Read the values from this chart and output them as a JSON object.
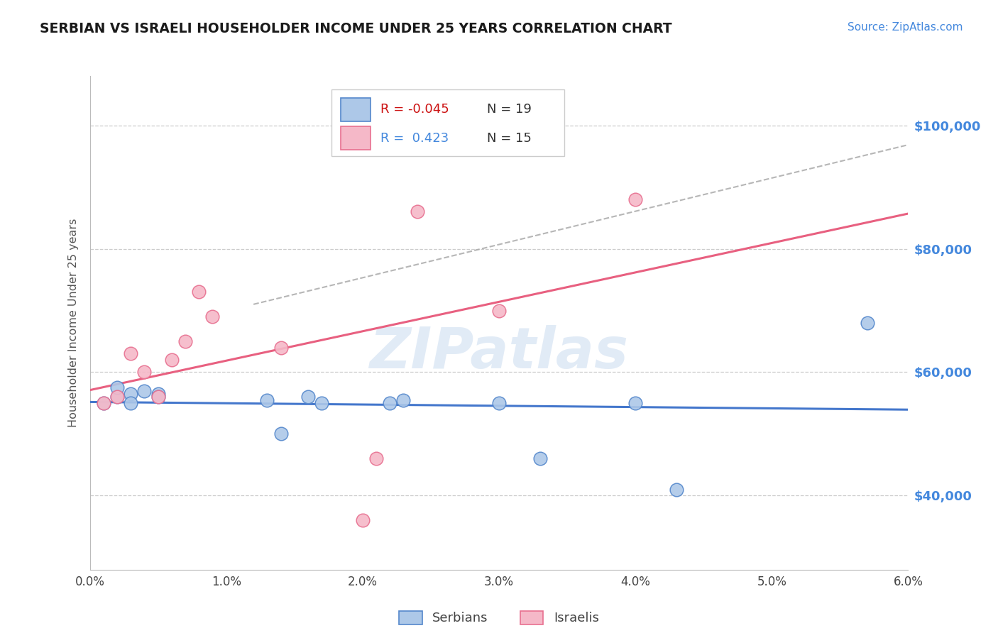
{
  "title": "SERBIAN VS ISRAELI HOUSEHOLDER INCOME UNDER 25 YEARS CORRELATION CHART",
  "source": "Source: ZipAtlas.com",
  "ylabel": "Householder Income Under 25 years",
  "xlim": [
    0.0,
    0.06
  ],
  "ylim": [
    28000,
    108000
  ],
  "xtick_values": [
    0.0,
    0.01,
    0.02,
    0.03,
    0.04,
    0.05,
    0.06
  ],
  "xtick_labels": [
    "0.0%",
    "1.0%",
    "2.0%",
    "3.0%",
    "4.0%",
    "5.0%",
    "6.0%"
  ],
  "ytick_values": [
    40000,
    60000,
    80000,
    100000
  ],
  "ytick_labels": [
    "$40,000",
    "$60,000",
    "$80,000",
    "$100,000"
  ],
  "background_color": "#ffffff",
  "grid_color": "#cccccc",
  "watermark_text": "ZIPatlas",
  "legend_R_serbian": "-0.045",
  "legend_N_serbian": "19",
  "legend_R_israeli": "0.423",
  "legend_N_israeli": "15",
  "serbian_face": "#adc8e8",
  "serbian_edge": "#5588cc",
  "israeli_face": "#f5b8c8",
  "israeli_edge": "#e87090",
  "trend_serbian": "#4477cc",
  "trend_israeli": "#e86080",
  "trend_gray": "#aaaaaa",
  "serbian_points": [
    [
      0.001,
      55000
    ],
    [
      0.002,
      56000
    ],
    [
      0.002,
      57500
    ],
    [
      0.003,
      56500
    ],
    [
      0.003,
      55000
    ],
    [
      0.004,
      57000
    ],
    [
      0.005,
      56500
    ],
    [
      0.005,
      56000
    ],
    [
      0.013,
      55500
    ],
    [
      0.014,
      50000
    ],
    [
      0.016,
      56000
    ],
    [
      0.017,
      55000
    ],
    [
      0.022,
      55000
    ],
    [
      0.023,
      55500
    ],
    [
      0.03,
      55000
    ],
    [
      0.033,
      46000
    ],
    [
      0.04,
      55000
    ],
    [
      0.043,
      41000
    ],
    [
      0.057,
      68000
    ]
  ],
  "israeli_points": [
    [
      0.001,
      55000
    ],
    [
      0.002,
      56000
    ],
    [
      0.003,
      63000
    ],
    [
      0.004,
      60000
    ],
    [
      0.005,
      56000
    ],
    [
      0.006,
      62000
    ],
    [
      0.007,
      65000
    ],
    [
      0.008,
      73000
    ],
    [
      0.009,
      69000
    ],
    [
      0.014,
      64000
    ],
    [
      0.02,
      36000
    ],
    [
      0.021,
      46000
    ],
    [
      0.024,
      86000
    ],
    [
      0.03,
      70000
    ],
    [
      0.04,
      88000
    ]
  ]
}
